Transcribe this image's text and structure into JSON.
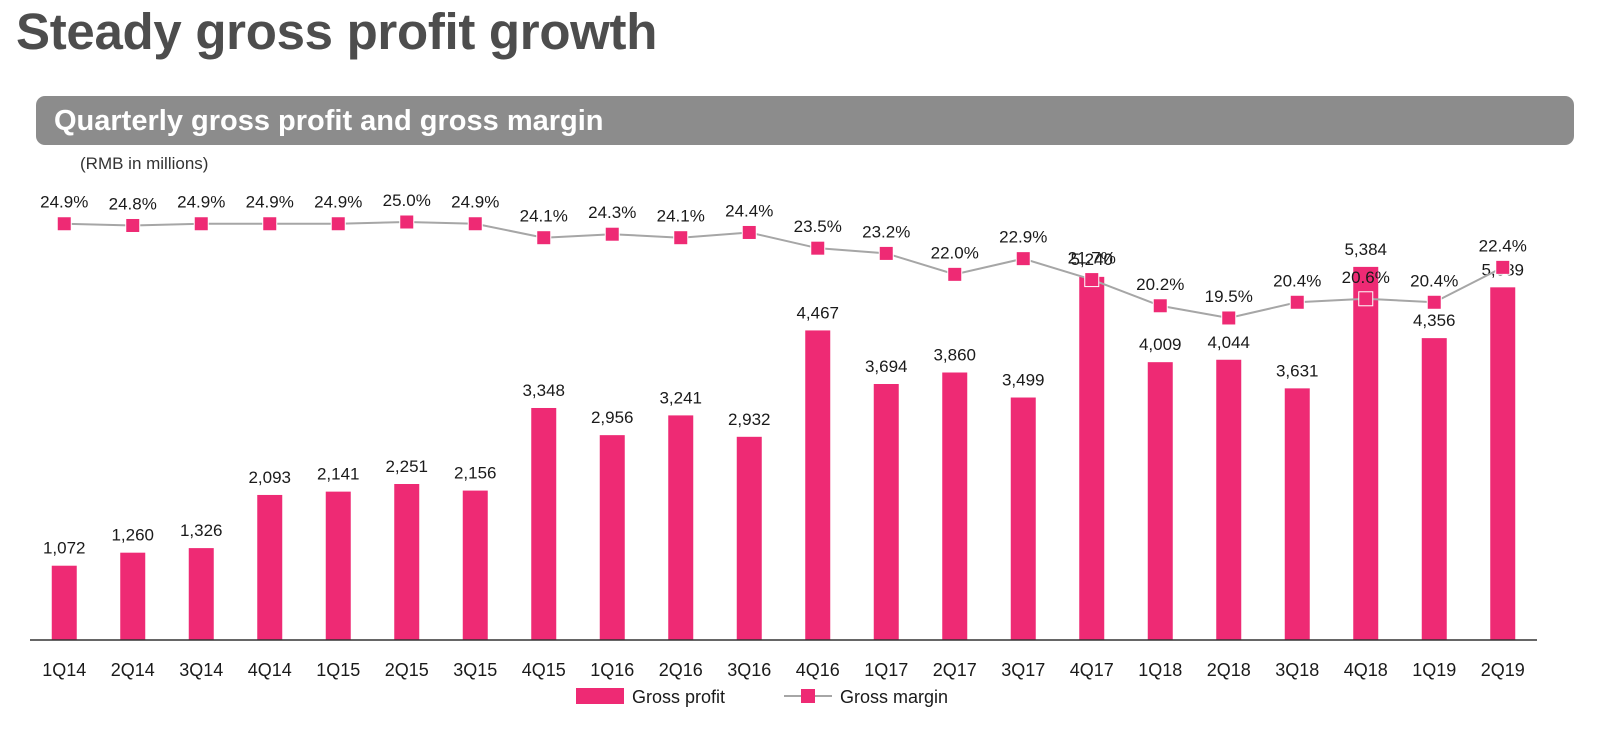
{
  "page": {
    "title": "Steady gross profit growth",
    "subtitle": "Quarterly gross profit and gross margin",
    "unit_note": "(RMB in millions)"
  },
  "colors": {
    "bar": "#ee2a74",
    "marker": "#ee2a74",
    "line": "#a6a6a6",
    "axis": "#333333",
    "label": "#1a1a1a"
  },
  "chart_data": {
    "type": "bar",
    "categories": [
      "1Q14",
      "2Q14",
      "3Q14",
      "4Q14",
      "1Q15",
      "2Q15",
      "3Q15",
      "4Q15",
      "1Q16",
      "2Q16",
      "3Q16",
      "4Q16",
      "1Q17",
      "2Q17",
      "3Q17",
      "4Q17",
      "1Q18",
      "2Q18",
      "3Q18",
      "4Q18",
      "1Q19",
      "2Q19"
    ],
    "series": [
      {
        "name": "Gross profit",
        "type": "bar",
        "values": [
          1072,
          1260,
          1326,
          2093,
          2141,
          2251,
          2156,
          3348,
          2956,
          3241,
          2932,
          4467,
          3694,
          3860,
          3499,
          5240,
          4009,
          4044,
          3631,
          5384,
          4356,
          5089
        ],
        "labels": [
          "1,072",
          "1,260",
          "1,326",
          "2,093",
          "2,141",
          "2,251",
          "2,156",
          "3,348",
          "2,956",
          "3,241",
          "2,932",
          "4,467",
          "3,694",
          "3,860",
          "3,499",
          "5,240",
          "4,009",
          "4,044",
          "3,631",
          "5,384",
          "4,356",
          "5,089"
        ]
      },
      {
        "name": "Gross margin",
        "type": "line",
        "values": [
          24.9,
          24.8,
          24.9,
          24.9,
          24.9,
          25.0,
          24.9,
          24.1,
          24.3,
          24.1,
          24.4,
          23.5,
          23.2,
          22.0,
          22.9,
          21.7,
          20.2,
          19.5,
          20.4,
          20.6,
          20.4,
          22.4
        ],
        "labels": [
          "24.9%",
          "24.8%",
          "24.9%",
          "24.9%",
          "24.9%",
          "25.0%",
          "24.9%",
          "24.1%",
          "24.3%",
          "24.1%",
          "24.4%",
          "23.5%",
          "23.2%",
          "22.0%",
          "22.9%",
          "21.7%",
          "20.2%",
          "19.5%",
          "20.4%",
          "20.6%",
          "20.4%",
          "22.4%"
        ]
      }
    ],
    "legend_position": "bottom-center",
    "grid": false
  }
}
